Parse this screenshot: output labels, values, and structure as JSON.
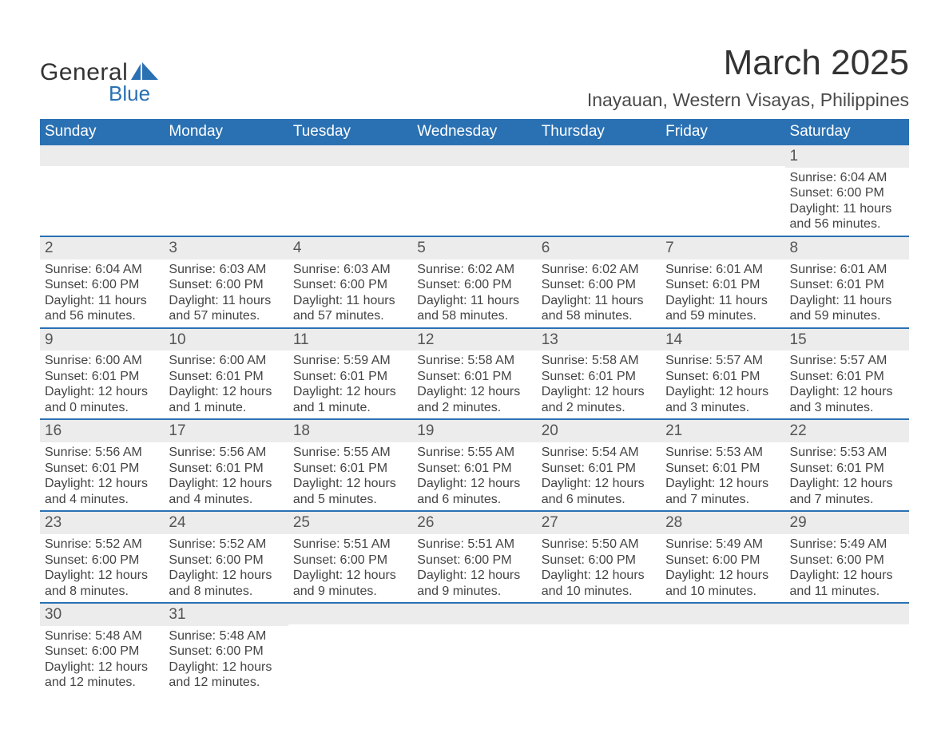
{
  "brand": {
    "name1": "General",
    "name2": "Blue",
    "shape_color": "#2a71b3",
    "text_color": "#333333"
  },
  "title": "March 2025",
  "location": "Inayauan, Western Visayas, Philippines",
  "header_bg": "#2a71b3",
  "header_fg": "#ffffff",
  "daynum_bg": "#ececec",
  "row_border": "#2a71b3",
  "page_bg": "#ffffff",
  "dayNames": [
    "Sunday",
    "Monday",
    "Tuesday",
    "Wednesday",
    "Thursday",
    "Friday",
    "Saturday"
  ],
  "title_fontsize": 44,
  "location_fontsize": 23,
  "dayname_fontsize": 19,
  "daynum_fontsize": 19,
  "info_fontsize": 16,
  "weeks": [
    [
      {
        "day": "",
        "sunrise": "",
        "sunset": "",
        "daylight": ""
      },
      {
        "day": "",
        "sunrise": "",
        "sunset": "",
        "daylight": ""
      },
      {
        "day": "",
        "sunrise": "",
        "sunset": "",
        "daylight": ""
      },
      {
        "day": "",
        "sunrise": "",
        "sunset": "",
        "daylight": ""
      },
      {
        "day": "",
        "sunrise": "",
        "sunset": "",
        "daylight": ""
      },
      {
        "day": "",
        "sunrise": "",
        "sunset": "",
        "daylight": ""
      },
      {
        "day": "1",
        "sunrise": "Sunrise: 6:04 AM",
        "sunset": "Sunset: 6:00 PM",
        "daylight": "Daylight: 11 hours and 56 minutes."
      }
    ],
    [
      {
        "day": "2",
        "sunrise": "Sunrise: 6:04 AM",
        "sunset": "Sunset: 6:00 PM",
        "daylight": "Daylight: 11 hours and 56 minutes."
      },
      {
        "day": "3",
        "sunrise": "Sunrise: 6:03 AM",
        "sunset": "Sunset: 6:00 PM",
        "daylight": "Daylight: 11 hours and 57 minutes."
      },
      {
        "day": "4",
        "sunrise": "Sunrise: 6:03 AM",
        "sunset": "Sunset: 6:00 PM",
        "daylight": "Daylight: 11 hours and 57 minutes."
      },
      {
        "day": "5",
        "sunrise": "Sunrise: 6:02 AM",
        "sunset": "Sunset: 6:00 PM",
        "daylight": "Daylight: 11 hours and 58 minutes."
      },
      {
        "day": "6",
        "sunrise": "Sunrise: 6:02 AM",
        "sunset": "Sunset: 6:00 PM",
        "daylight": "Daylight: 11 hours and 58 minutes."
      },
      {
        "day": "7",
        "sunrise": "Sunrise: 6:01 AM",
        "sunset": "Sunset: 6:01 PM",
        "daylight": "Daylight: 11 hours and 59 minutes."
      },
      {
        "day": "8",
        "sunrise": "Sunrise: 6:01 AM",
        "sunset": "Sunset: 6:01 PM",
        "daylight": "Daylight: 11 hours and 59 minutes."
      }
    ],
    [
      {
        "day": "9",
        "sunrise": "Sunrise: 6:00 AM",
        "sunset": "Sunset: 6:01 PM",
        "daylight": "Daylight: 12 hours and 0 minutes."
      },
      {
        "day": "10",
        "sunrise": "Sunrise: 6:00 AM",
        "sunset": "Sunset: 6:01 PM",
        "daylight": "Daylight: 12 hours and 1 minute."
      },
      {
        "day": "11",
        "sunrise": "Sunrise: 5:59 AM",
        "sunset": "Sunset: 6:01 PM",
        "daylight": "Daylight: 12 hours and 1 minute."
      },
      {
        "day": "12",
        "sunrise": "Sunrise: 5:58 AM",
        "sunset": "Sunset: 6:01 PM",
        "daylight": "Daylight: 12 hours and 2 minutes."
      },
      {
        "day": "13",
        "sunrise": "Sunrise: 5:58 AM",
        "sunset": "Sunset: 6:01 PM",
        "daylight": "Daylight: 12 hours and 2 minutes."
      },
      {
        "day": "14",
        "sunrise": "Sunrise: 5:57 AM",
        "sunset": "Sunset: 6:01 PM",
        "daylight": "Daylight: 12 hours and 3 minutes."
      },
      {
        "day": "15",
        "sunrise": "Sunrise: 5:57 AM",
        "sunset": "Sunset: 6:01 PM",
        "daylight": "Daylight: 12 hours and 3 minutes."
      }
    ],
    [
      {
        "day": "16",
        "sunrise": "Sunrise: 5:56 AM",
        "sunset": "Sunset: 6:01 PM",
        "daylight": "Daylight: 12 hours and 4 minutes."
      },
      {
        "day": "17",
        "sunrise": "Sunrise: 5:56 AM",
        "sunset": "Sunset: 6:01 PM",
        "daylight": "Daylight: 12 hours and 4 minutes."
      },
      {
        "day": "18",
        "sunrise": "Sunrise: 5:55 AM",
        "sunset": "Sunset: 6:01 PM",
        "daylight": "Daylight: 12 hours and 5 minutes."
      },
      {
        "day": "19",
        "sunrise": "Sunrise: 5:55 AM",
        "sunset": "Sunset: 6:01 PM",
        "daylight": "Daylight: 12 hours and 6 minutes."
      },
      {
        "day": "20",
        "sunrise": "Sunrise: 5:54 AM",
        "sunset": "Sunset: 6:01 PM",
        "daylight": "Daylight: 12 hours and 6 minutes."
      },
      {
        "day": "21",
        "sunrise": "Sunrise: 5:53 AM",
        "sunset": "Sunset: 6:01 PM",
        "daylight": "Daylight: 12 hours and 7 minutes."
      },
      {
        "day": "22",
        "sunrise": "Sunrise: 5:53 AM",
        "sunset": "Sunset: 6:01 PM",
        "daylight": "Daylight: 12 hours and 7 minutes."
      }
    ],
    [
      {
        "day": "23",
        "sunrise": "Sunrise: 5:52 AM",
        "sunset": "Sunset: 6:00 PM",
        "daylight": "Daylight: 12 hours and 8 minutes."
      },
      {
        "day": "24",
        "sunrise": "Sunrise: 5:52 AM",
        "sunset": "Sunset: 6:00 PM",
        "daylight": "Daylight: 12 hours and 8 minutes."
      },
      {
        "day": "25",
        "sunrise": "Sunrise: 5:51 AM",
        "sunset": "Sunset: 6:00 PM",
        "daylight": "Daylight: 12 hours and 9 minutes."
      },
      {
        "day": "26",
        "sunrise": "Sunrise: 5:51 AM",
        "sunset": "Sunset: 6:00 PM",
        "daylight": "Daylight: 12 hours and 9 minutes."
      },
      {
        "day": "27",
        "sunrise": "Sunrise: 5:50 AM",
        "sunset": "Sunset: 6:00 PM",
        "daylight": "Daylight: 12 hours and 10 minutes."
      },
      {
        "day": "28",
        "sunrise": "Sunrise: 5:49 AM",
        "sunset": "Sunset: 6:00 PM",
        "daylight": "Daylight: 12 hours and 10 minutes."
      },
      {
        "day": "29",
        "sunrise": "Sunrise: 5:49 AM",
        "sunset": "Sunset: 6:00 PM",
        "daylight": "Daylight: 12 hours and 11 minutes."
      }
    ],
    [
      {
        "day": "30",
        "sunrise": "Sunrise: 5:48 AM",
        "sunset": "Sunset: 6:00 PM",
        "daylight": "Daylight: 12 hours and 12 minutes."
      },
      {
        "day": "31",
        "sunrise": "Sunrise: 5:48 AM",
        "sunset": "Sunset: 6:00 PM",
        "daylight": "Daylight: 12 hours and 12 minutes."
      },
      {
        "day": "",
        "sunrise": "",
        "sunset": "",
        "daylight": ""
      },
      {
        "day": "",
        "sunrise": "",
        "sunset": "",
        "daylight": ""
      },
      {
        "day": "",
        "sunrise": "",
        "sunset": "",
        "daylight": ""
      },
      {
        "day": "",
        "sunrise": "",
        "sunset": "",
        "daylight": ""
      },
      {
        "day": "",
        "sunrise": "",
        "sunset": "",
        "daylight": ""
      }
    ]
  ]
}
